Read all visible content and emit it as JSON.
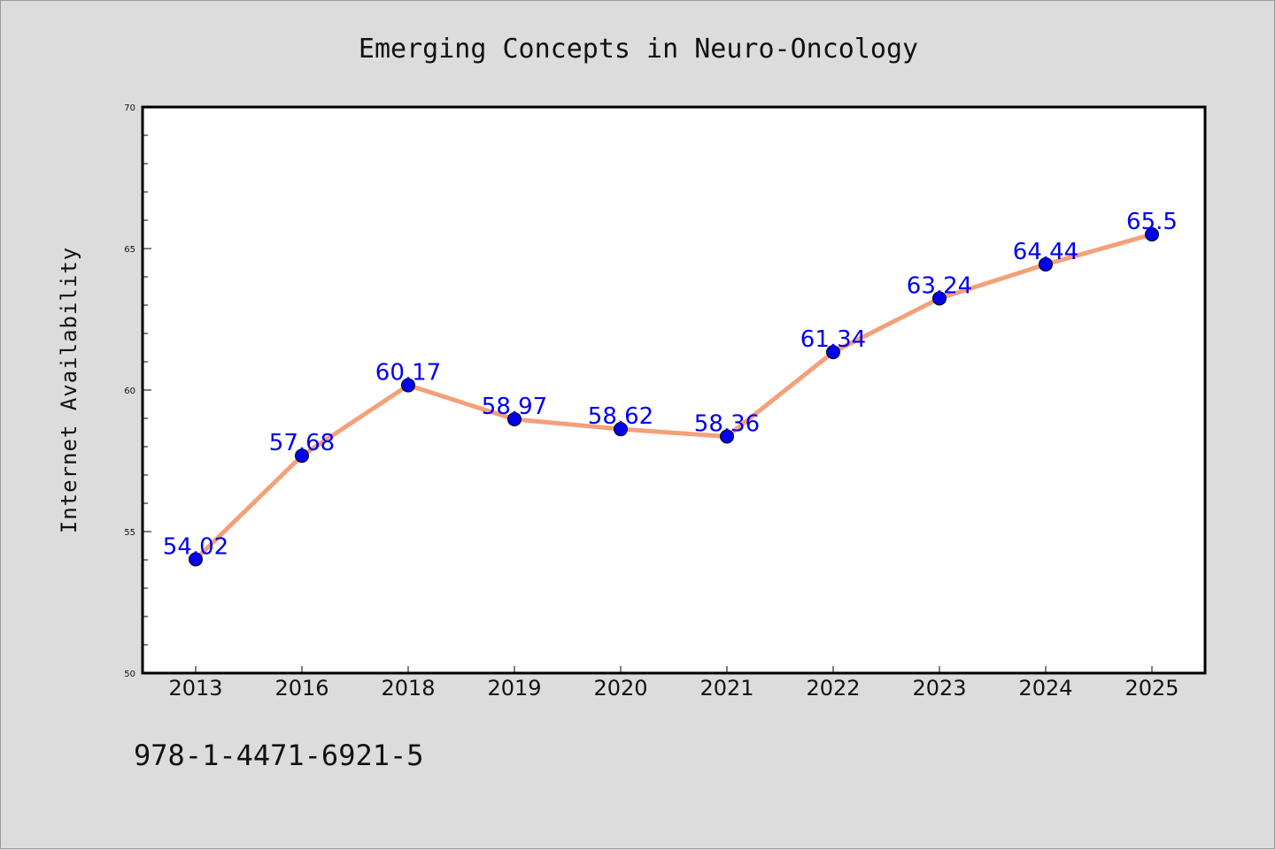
{
  "chart_data": {
    "type": "line",
    "title": "Emerging Concepts in Neuro-Oncology",
    "xlabel": "",
    "ylabel": "Internet Availability",
    "categories": [
      "2013",
      "2016",
      "2018",
      "2019",
      "2020",
      "2021",
      "2022",
      "2023",
      "2024",
      "2025"
    ],
    "series": [
      {
        "values": [
          54.02,
          57.68,
          60.17,
          58.97,
          58.62,
          58.36,
          61.34,
          63.24,
          64.44,
          65.5
        ],
        "data_labels": [
          "54.02",
          "57.68",
          "60.17",
          "58.97",
          "58.62",
          "58.36",
          "61.34",
          "63.24",
          "64.44",
          "65.5"
        ],
        "line_color": "#f4a07a",
        "marker_color": "#0000ee"
      }
    ],
    "ylim": [
      50,
      70
    ],
    "yticks": [
      50,
      55,
      60,
      65,
      70
    ],
    "grid": false,
    "legend": "none"
  },
  "footer": {
    "text": "978-1-4471-6921-5"
  }
}
